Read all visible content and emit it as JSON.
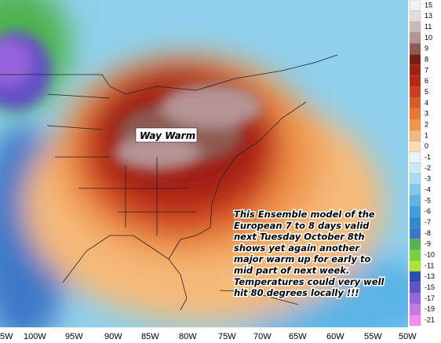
{
  "map": {
    "labels": {
      "way_warm": "Way Warm"
    },
    "note": [
      "This Ensemble model of the",
      "European 7 to 8 days valid",
      "next Tuesday October 8th",
      "shows yet again another",
      "major warm up for early to",
      "mid part of next week.",
      "Temperatures could very well",
      "hit 80 degrees locally !!!"
    ],
    "longitudes": [
      "5W",
      "100W",
      "95W",
      "90W",
      "85W",
      "80W",
      "75W",
      "70W",
      "65W",
      "60W",
      "55W",
      "50W"
    ]
  },
  "legend": {
    "labels": [
      15,
      13,
      11,
      10,
      9,
      8,
      7,
      6,
      5,
      4,
      3,
      2,
      1,
      0,
      -1,
      -2,
      -3,
      -4,
      -5,
      -6,
      -7,
      -8,
      -9,
      -10,
      -11,
      -13,
      -15,
      -17,
      -19,
      -21
    ],
    "colors": [
      "#f2f2f2",
      "#e6dcdc",
      "#cdb8b8",
      "#b49494",
      "#8c5a50",
      "#7a1e14",
      "#a01e14",
      "#b42814",
      "#cc3c1e",
      "#dc5a28",
      "#e67832",
      "#f0964b",
      "#f5b978",
      "#fadcb4",
      "#e6f5fa",
      "#c8ebf5",
      "#aadcf0",
      "#82c8eb",
      "#5ab4e6",
      "#3ca0dc",
      "#2d8cd2",
      "#3c78c8",
      "#50b450",
      "#78d23c",
      "#aae632",
      "#2850b4",
      "#6450c8",
      "#9664dc",
      "#c878e6",
      "#f08cf0"
    ]
  }
}
